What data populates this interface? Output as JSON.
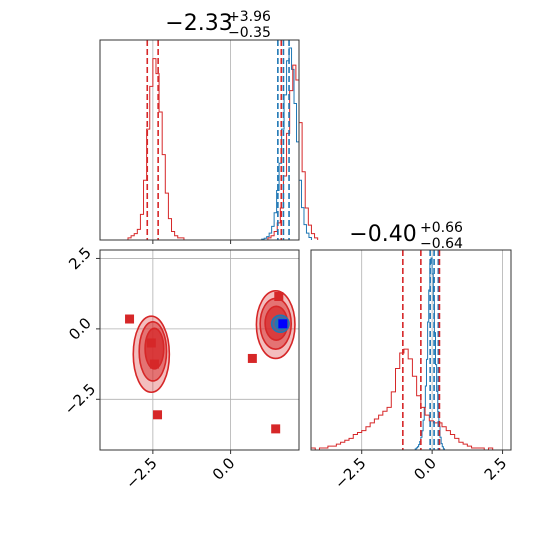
{
  "chart_data": {
    "type": "corner",
    "colors": {
      "red": "#d62728",
      "blue": "#1f77b4",
      "marker_blue": "#0000ff",
      "grid": "#b0b0b0",
      "spine": "#333333"
    },
    "grid": true,
    "param1": {
      "range": [
        -4.2,
        2.2
      ],
      "ticks": [
        -2.5,
        0.0
      ],
      "tick_labels": [
        "−2.5",
        "0.0"
      ],
      "title_median": "−2.33",
      "title_plus": "+3.96",
      "title_minus": "−0.35",
      "red_quantiles": [
        -2.68,
        -2.33,
        1.63
      ],
      "blue_quantiles": [
        1.52,
        1.7,
        1.88
      ]
    },
    "param2": {
      "range": [
        -4.3,
        2.8
      ],
      "ticks": [
        -2.5,
        0.0,
        2.5
      ],
      "tick_labels": [
        "−2.5",
        "0.0",
        "2.5"
      ],
      "title_median": "−0.40",
      "title_plus": "+0.66",
      "title_minus": "−0.64",
      "red_quantiles": [
        -1.04,
        -0.4,
        0.26
      ],
      "blue_quantiles": [
        -0.07,
        0.07,
        0.22
      ]
    },
    "hist1_red": {
      "start": -3.3,
      "width": 0.1,
      "counts": [
        1,
        2,
        3,
        5,
        12,
        28,
        52,
        72,
        85,
        78,
        60,
        40,
        22,
        10,
        4,
        2,
        1,
        1,
        0,
        0,
        0,
        0,
        0,
        0,
        0,
        0,
        0,
        0,
        0,
        0,
        0,
        0,
        0,
        0,
        0,
        0,
        0,
        0,
        0,
        0,
        0,
        0,
        0,
        0,
        0,
        1,
        2,
        4,
        8,
        15,
        30,
        50,
        70,
        82,
        75,
        55,
        32,
        15,
        7,
        3,
        1
      ]
    },
    "hist1_blue": {
      "start": 1.0,
      "width": 0.08,
      "counts": [
        1,
        2,
        4,
        8,
        16,
        32,
        58,
        90,
        130,
        170,
        210,
        225,
        200,
        160,
        115,
        70,
        38,
        18,
        8,
        3
      ]
    },
    "hist2_red": {
      "start": -4.3,
      "width": 0.15,
      "counts": [
        1,
        0,
        1,
        1,
        2,
        2,
        3,
        4,
        5,
        6,
        8,
        9,
        10,
        12,
        14,
        16,
        18,
        20,
        22,
        30,
        42,
        50,
        52,
        47,
        38,
        28,
        22,
        18,
        15,
        14,
        14,
        12,
        10,
        8,
        6,
        4,
        3,
        2,
        1,
        1,
        1,
        0,
        1
      ]
    },
    "hist2_blue": {
      "start": -0.6,
      "width": 0.04,
      "counts": [
        1,
        2,
        3,
        5,
        8,
        12,
        18,
        28,
        40,
        60,
        85,
        120,
        150,
        175,
        180,
        165,
        140,
        110,
        80,
        55,
        36,
        22,
        12,
        6,
        3,
        1
      ]
    },
    "markers_red": [
      [
        -3.25,
        0.35
      ],
      [
        -2.55,
        -0.5
      ],
      [
        -2.45,
        -1.25
      ],
      [
        -2.35,
        -3.05
      ],
      [
        0.7,
        -1.05
      ],
      [
        1.55,
        1.15
      ],
      [
        1.45,
        -3.55
      ]
    ],
    "marker_blue": [
      1.68,
      0.18
    ],
    "contours": {
      "red_left": [
        {
          "cx": -2.55,
          "cy": -0.9,
          "rx": 0.58,
          "ry": 1.35
        },
        {
          "cx": -2.5,
          "cy": -0.8,
          "rx": 0.44,
          "ry": 1.05
        },
        {
          "cx": -2.45,
          "cy": -0.7,
          "rx": 0.3,
          "ry": 0.72
        }
      ],
      "red_right": [
        {
          "cx": 1.45,
          "cy": 0.15,
          "rx": 0.62,
          "ry": 1.2
        },
        {
          "cx": 1.45,
          "cy": 0.18,
          "rx": 0.5,
          "ry": 0.9
        },
        {
          "cx": 1.47,
          "cy": 0.2,
          "rx": 0.36,
          "ry": 0.6
        }
      ],
      "blue_right": [
        {
          "cx": 1.6,
          "cy": 0.18,
          "rx": 0.28,
          "ry": 0.3
        },
        {
          "cx": 1.62,
          "cy": 0.18,
          "rx": 0.18,
          "ry": 0.2
        }
      ]
    }
  }
}
